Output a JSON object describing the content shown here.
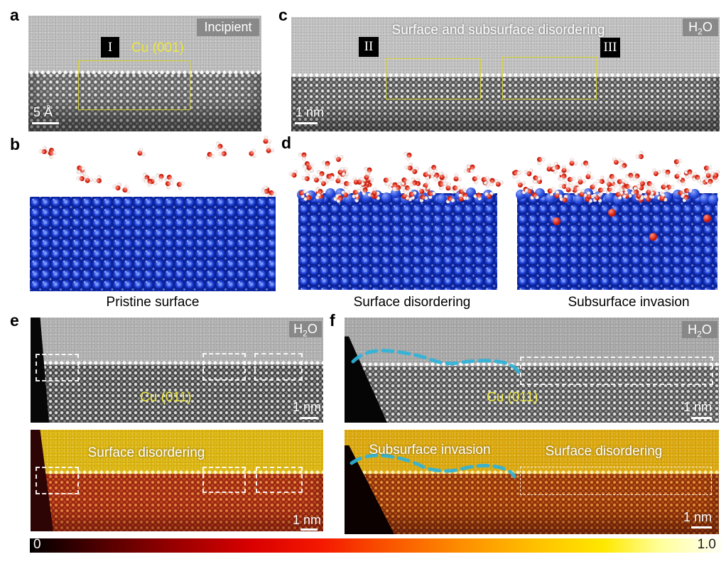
{
  "figure": {
    "panels": {
      "a": {
        "label": "a",
        "badge": "Incipient",
        "roman": "I",
        "crystal": "Cu (001)",
        "scalebar": "5 Å"
      },
      "b": {
        "label": "b",
        "caption": "Pristine surface"
      },
      "c": {
        "label": "c",
        "title": "Surface and subsurface disordering",
        "roman2": "II",
        "roman3": "III",
        "scalebar": "1 nm"
      },
      "d": {
        "label": "d",
        "caption1": "Surface disordering",
        "caption2": "Subsurface invasion"
      },
      "e": {
        "label": "e",
        "crystal": "Cu (011)",
        "scalebar_top": "1 nm",
        "overlay_bottom": "Surface disordering",
        "scalebar_bottom": "1 nm"
      },
      "f": {
        "label": "f",
        "crystal": "Cu (011)",
        "scalebar_top": "1 nm",
        "overlay_bottom_left": "Subsurface invasion",
        "overlay_bottom_right": "Surface disordering",
        "scalebar_bottom": "1 nm"
      }
    },
    "h2o": {
      "pre": "H",
      "sub": "2",
      "post": "O"
    },
    "colorbar": {
      "min": "0",
      "max": "1.0"
    },
    "colors": {
      "annotation_yellow": "#ece63c",
      "cyan_dash": "#2fb3d9",
      "atom_blue": "#1c3fd4",
      "atom_red": "#d31c0c",
      "badge_gray": "#848484"
    }
  }
}
